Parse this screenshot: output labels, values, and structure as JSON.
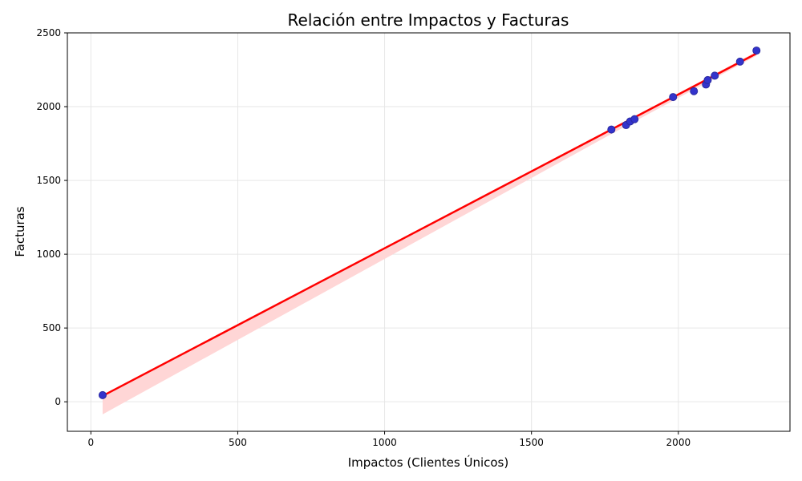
{
  "chart_data": {
    "type": "scatter",
    "title": "Relación entre Impactos y Facturas",
    "xlabel": "Impactos (Clientes Únicos)",
    "ylabel": "Facturas",
    "xlim": [
      -80,
      2380
    ],
    "ylim": [
      -200,
      2500
    ],
    "xticks": [
      0,
      500,
      1000,
      1500,
      2000
    ],
    "yticks": [
      0,
      500,
      1000,
      1500,
      2000,
      2500
    ],
    "grid": true,
    "points": [
      {
        "x": 40,
        "y": 45
      },
      {
        "x": 1772,
        "y": 1845
      },
      {
        "x": 1822,
        "y": 1875
      },
      {
        "x": 1836,
        "y": 1900
      },
      {
        "x": 1851,
        "y": 1915
      },
      {
        "x": 1982,
        "y": 2065
      },
      {
        "x": 2053,
        "y": 2105
      },
      {
        "x": 2094,
        "y": 2150
      },
      {
        "x": 2100,
        "y": 2180
      },
      {
        "x": 2124,
        "y": 2210
      },
      {
        "x": 2210,
        "y": 2305
      },
      {
        "x": 2266,
        "y": 2380
      }
    ],
    "regression": {
      "x_range": [
        40,
        2266
      ],
      "line": [
        [
          40,
          40
        ],
        [
          2266,
          2360
        ]
      ],
      "ci_band": [
        {
          "x": 40,
          "lower": -85,
          "upper": 45
        },
        {
          "x": 1772,
          "lower": 1815,
          "upper": 1850
        },
        {
          "x": 2266,
          "lower": 2345,
          "upper": 2372
        }
      ]
    },
    "colors": {
      "point_fill": "#3333cc",
      "point_edge": "#2a2aa0",
      "line": "#ff0000",
      "band": "#ffd6d6",
      "grid": "#e6e6e6"
    }
  }
}
